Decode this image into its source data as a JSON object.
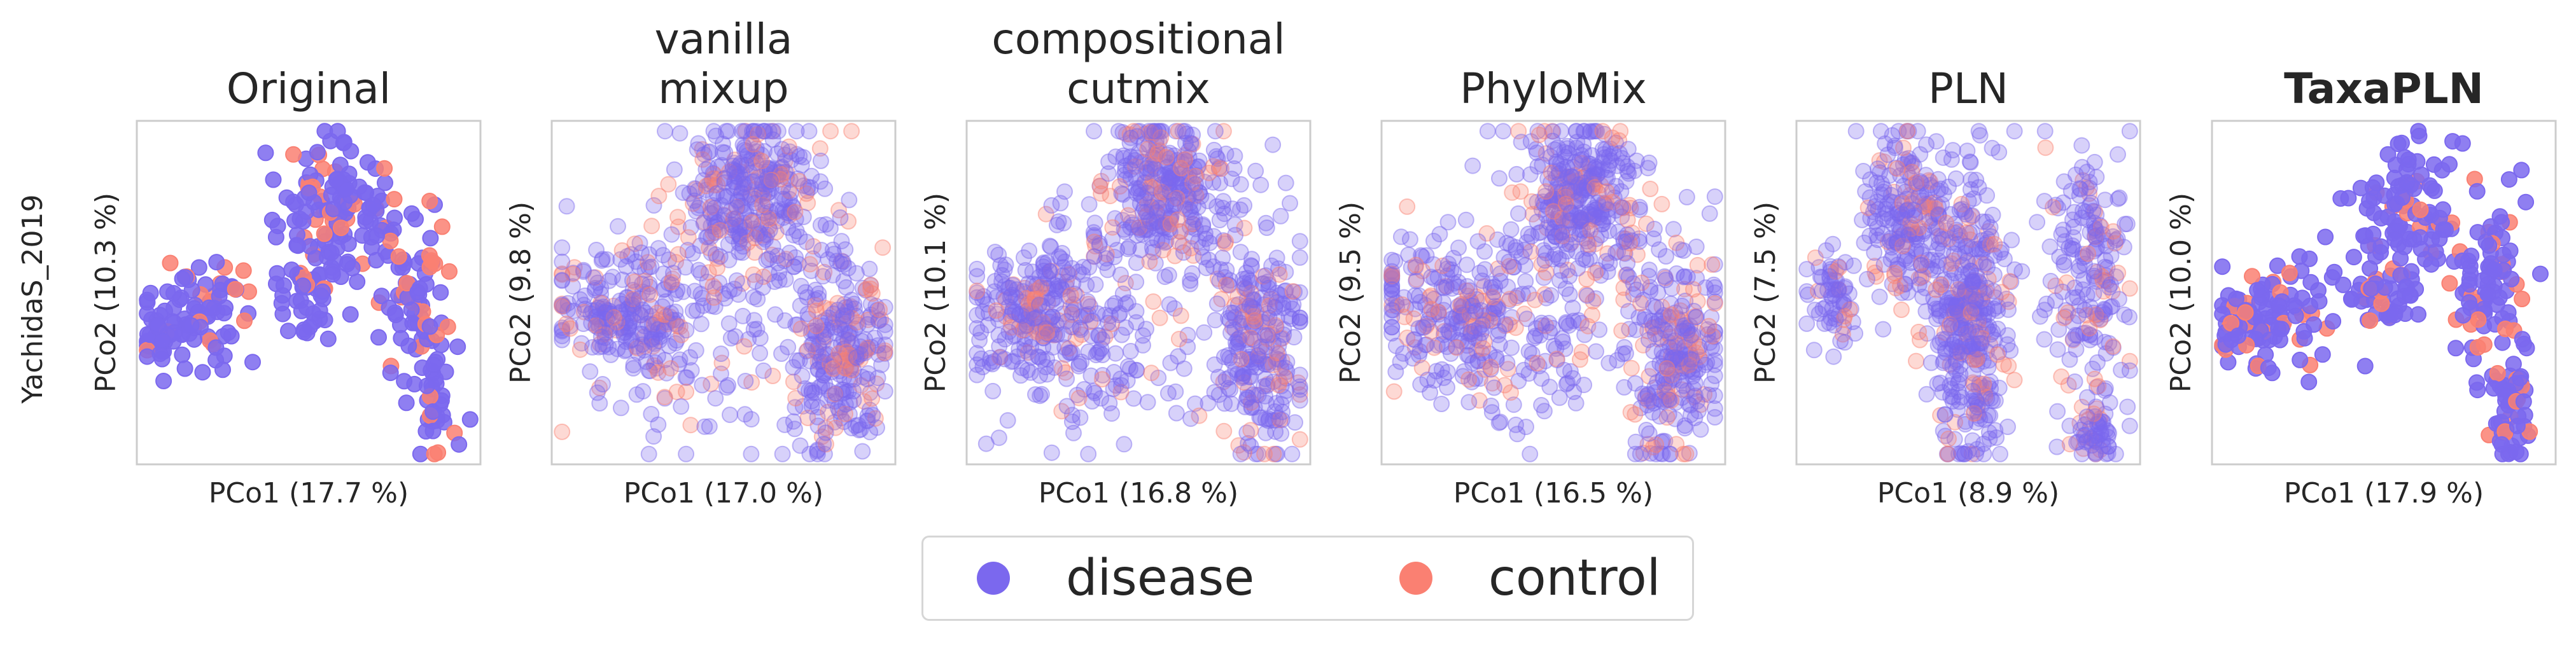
{
  "row_label": "YachidaS_2019",
  "colors": {
    "disease": "#7b68ee",
    "control": "#fa8072"
  },
  "legend": [
    {
      "key": "disease",
      "label": "disease"
    },
    {
      "key": "control",
      "label": "control"
    }
  ],
  "chart_data": [
    {
      "type": "scatter",
      "title": [
        "Original"
      ],
      "bold": false,
      "xlabel": "PCo1 (17.7 %)",
      "ylabel": "PCo2 (10.3 %)"
    },
    {
      "type": "scatter",
      "title": [
        "vanilla",
        "mixup"
      ],
      "bold": false,
      "xlabel": "PCo1 (17.0 %)",
      "ylabel": "PCo2 (9.8 %)"
    },
    {
      "type": "scatter",
      "title": [
        "compositional",
        "cutmix"
      ],
      "bold": false,
      "xlabel": "PCo1 (16.8 %)",
      "ylabel": "PCo2 (10.1 %)"
    },
    {
      "type": "scatter",
      "title": [
        "PhyloMix"
      ],
      "bold": false,
      "xlabel": "PCo1 (16.5 %)",
      "ylabel": "PCo2 (9.5 %)"
    },
    {
      "type": "scatter",
      "title": [
        "PLN"
      ],
      "bold": false,
      "xlabel": "PCo1 (8.9 %)",
      "ylabel": "PCo2 (7.5 %)"
    },
    {
      "type": "scatter",
      "title": [
        "TaxaPLN"
      ],
      "bold": true,
      "xlabel": "PCo1 (17.9 %)",
      "ylabel": "PCo2 (10.0 %)"
    }
  ]
}
